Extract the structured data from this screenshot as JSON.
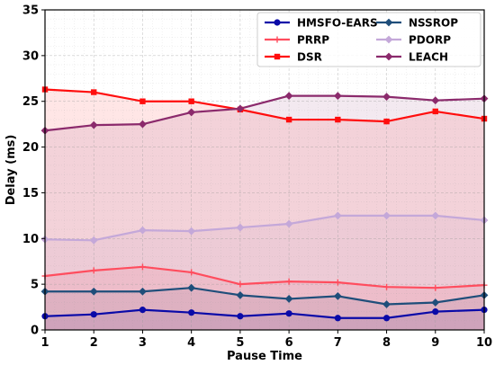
{
  "chart_data": {
    "type": "line",
    "xlabel": "Pause Time",
    "ylabel": "Delay (ms)",
    "x": [
      1,
      2,
      3,
      4,
      5,
      6,
      7,
      8,
      9,
      10
    ],
    "xlim": [
      1,
      10
    ],
    "ylim": [
      0,
      35
    ],
    "yticks": [
      0,
      5,
      10,
      15,
      20,
      25,
      30,
      35
    ],
    "grid": true,
    "legend_position": "top-right",
    "series": [
      {
        "name": "HMSFO-EARS",
        "color": "#0a0aa8",
        "marker": "circle",
        "values": [
          1.5,
          1.7,
          2.2,
          1.9,
          1.5,
          1.8,
          1.3,
          1.3,
          2.0,
          2.2
        ]
      },
      {
        "name": "NSSROP",
        "color": "#1f4e7a",
        "marker": "diamond",
        "values": [
          4.2,
          4.2,
          4.2,
          4.6,
          3.8,
          3.4,
          3.7,
          2.8,
          3.0,
          3.8
        ]
      },
      {
        "name": "PRRP",
        "color": "#ff4d5e",
        "marker": "plus",
        "values": [
          5.9,
          6.5,
          6.9,
          6.3,
          5.0,
          5.3,
          5.2,
          4.7,
          4.6,
          4.9
        ]
      },
      {
        "name": "PDORP",
        "color": "#c4a8d9",
        "marker": "diamond",
        "values": [
          9.9,
          9.8,
          10.9,
          10.8,
          11.2,
          11.6,
          12.5,
          12.5,
          12.5,
          12.0
        ]
      },
      {
        "name": "DSR",
        "color": "#ff0d0d",
        "marker": "square",
        "values": [
          26.3,
          26.0,
          25.0,
          25.0,
          24.1,
          23.0,
          23.0,
          22.8,
          23.9,
          23.1
        ]
      },
      {
        "name": "LEACH",
        "color": "#8b2a6c",
        "marker": "diamond",
        "values": [
          21.8,
          22.4,
          22.5,
          23.8,
          24.2,
          25.6,
          25.6,
          25.5,
          25.1,
          25.3
        ]
      }
    ]
  }
}
